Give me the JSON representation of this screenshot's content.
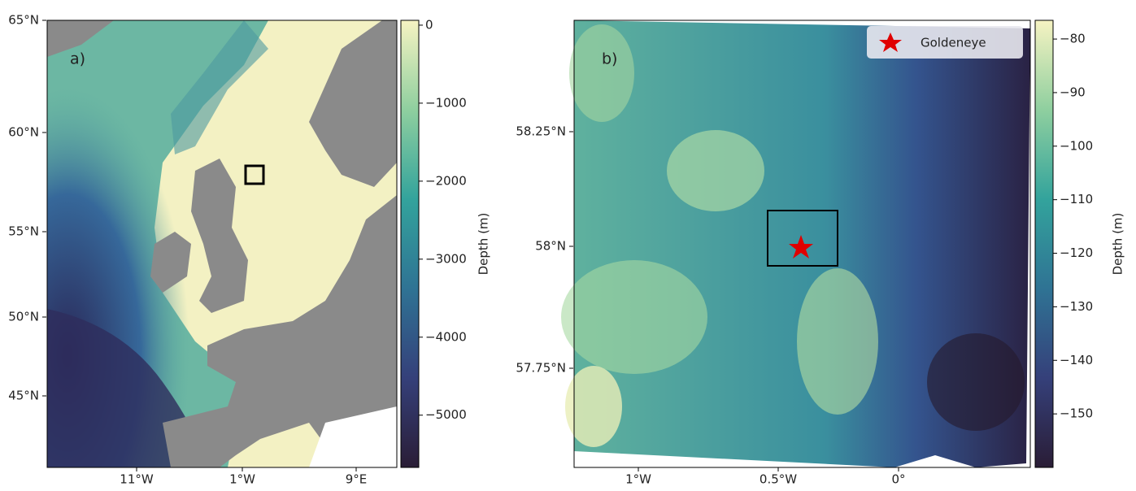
{
  "panels": [
    {
      "label": "a)",
      "lat_ticks": [
        "65°N",
        "60°N",
        "55°N",
        "50°N",
        "45°N"
      ],
      "lon_ticks": [
        "11°W",
        "1°W",
        "9°E"
      ],
      "colorbar": {
        "title": "Depth (m)",
        "lim": [
          -5670,
          62
        ],
        "ticks": [
          {
            "value": 0,
            "label": "0"
          },
          {
            "value": -1000,
            "label": "−1000"
          },
          {
            "value": -2000,
            "label": "−2000"
          },
          {
            "value": -3000,
            "label": "−3000"
          },
          {
            "value": -4000,
            "label": "−4000"
          },
          {
            "value": -5000,
            "label": "−5000"
          }
        ]
      }
    },
    {
      "label": "b)",
      "lat_ticks": [
        "58.25°N",
        "58°N",
        "57.75°N"
      ],
      "lon_ticks": [
        "1°W",
        "0.5°W",
        "0°"
      ],
      "legend": "Goldeneye",
      "colorbar": {
        "title": "Depth (m)",
        "lim": [
          -160,
          -76.5
        ],
        "ticks": [
          {
            "value": -80,
            "label": "−80"
          },
          {
            "value": -90,
            "label": "−90"
          },
          {
            "value": -100,
            "label": "−100"
          },
          {
            "value": -110,
            "label": "−110"
          },
          {
            "value": -120,
            "label": "−120"
          },
          {
            "value": -130,
            "label": "−130"
          },
          {
            "value": -140,
            "label": "−140"
          },
          {
            "value": -150,
            "label": "−150"
          }
        ]
      }
    }
  ]
}
